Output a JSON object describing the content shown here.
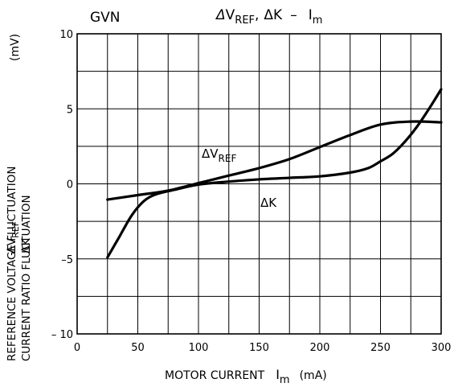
{
  "chart_data": {
    "type": "line",
    "title": "ΔV_REF, ΔK − I_m",
    "title_parts": {
      "a_delta": "Δ",
      "a_main": "V",
      "a_sub": "REF",
      "sep": ",",
      "b": "ΔK",
      "dash": "–",
      "c_main": "I",
      "c_sub": "m"
    },
    "corner_label": "GVN",
    "xlabel": "MOTOR CURRENT I_m (mA)",
    "xlabel_parts": {
      "text": "MOTOR CURRENT",
      "sym_main": "I",
      "sym_sub": "m",
      "unit": "(mA)"
    },
    "ylabel": "REFERENCE VOLTAGE FLUCTUATION / CURRENT RATIO FLUCTUATION",
    "ylabel_lines": [
      "REFERENCE VOLTAGE FLUCTUATION",
      "CURRENT RATIO FLUCTUATION"
    ],
    "ylabel_sym": {
      "vref_main": "ΔV",
      "vref_sub": "REF",
      "k": "ΔK",
      "unit": "(mV)"
    },
    "xlim": [
      0,
      300
    ],
    "ylim": [
      -10,
      10
    ],
    "x_ticks": [
      0,
      50,
      100,
      150,
      200,
      250,
      300
    ],
    "x_tick_labels": [
      "0",
      "50",
      "100",
      "150",
      "200",
      "250",
      "300"
    ],
    "y_ticks": [
      -10,
      -5,
      0,
      5,
      10
    ],
    "y_tick_labels": [
      "– 10",
      "–5",
      "0",
      "5",
      "10"
    ],
    "grid": true,
    "grid_x_step": 25,
    "grid_y_step": 2.5,
    "series": [
      {
        "name": "ΔV_REF",
        "label_main": "ΔV",
        "label_sub": "REF",
        "x": [
          25,
          50,
          75,
          100,
          125,
          150,
          175,
          200,
          225,
          250,
          275,
          300
        ],
        "y": [
          -1.05,
          -0.75,
          -0.45,
          0.05,
          0.55,
          1.05,
          1.65,
          2.45,
          3.25,
          3.95,
          4.15,
          4.1
        ]
      },
      {
        "name": "ΔK",
        "label_main": "ΔK",
        "label_sub": "",
        "x": [
          25,
          35,
          45,
          55,
          65,
          80,
          100,
          125,
          150,
          175,
          200,
          225,
          240,
          250,
          260,
          270,
          280,
          290,
          300
        ],
        "y": [
          -4.9,
          -3.5,
          -2.1,
          -1.15,
          -0.7,
          -0.4,
          -0.05,
          0.15,
          0.3,
          0.4,
          0.5,
          0.75,
          1.05,
          1.5,
          2.0,
          2.8,
          3.8,
          5.0,
          6.3
        ]
      }
    ]
  }
}
